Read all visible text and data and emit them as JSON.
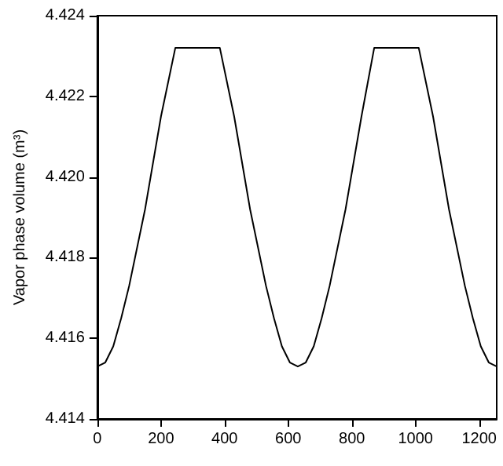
{
  "chart_data": {
    "type": "line",
    "ylabel": "Vapor phase volume (m³)",
    "x": [
      0,
      25,
      50,
      75,
      100,
      150,
      200,
      245,
      385,
      430,
      480,
      530,
      555,
      580,
      605,
      630,
      655,
      680,
      705,
      730,
      780,
      830,
      870,
      1010,
      1055,
      1105,
      1155,
      1180,
      1205,
      1230,
      1255
    ],
    "values": [
      4.4153,
      4.4154,
      4.4158,
      4.4165,
      4.4173,
      4.4192,
      4.4215,
      4.4232,
      4.4232,
      4.4215,
      4.4192,
      4.4173,
      4.4165,
      4.4158,
      4.4154,
      4.4153,
      4.4154,
      4.4158,
      4.4165,
      4.4173,
      4.4192,
      4.4215,
      4.4232,
      4.4232,
      4.4215,
      4.4192,
      4.4173,
      4.4165,
      4.4158,
      4.4154,
      4.4153
    ],
    "color": "#000000",
    "xlim": [
      0,
      1255
    ],
    "xticks": [
      0,
      200,
      400,
      600,
      800,
      1000,
      1200
    ],
    "ylim": [
      4.414,
      4.424
    ],
    "yticks": [
      4.414,
      4.416,
      4.418,
      {
        "value": 4.42,
        "label": "4.420"
      },
      4.422,
      4.424
    ],
    "grid": false,
    "marker": "none",
    "line_style": "solid"
  }
}
